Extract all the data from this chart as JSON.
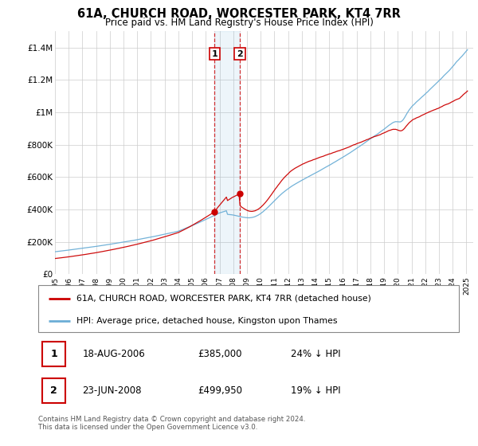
{
  "title": "61A, CHURCH ROAD, WORCESTER PARK, KT4 7RR",
  "subtitle": "Price paid vs. HM Land Registry's House Price Index (HPI)",
  "legend_line1": "61A, CHURCH ROAD, WORCESTER PARK, KT4 7RR (detached house)",
  "legend_line2": "HPI: Average price, detached house, Kingston upon Thames",
  "transaction1_date": "18-AUG-2006",
  "transaction1_price": "£385,000",
  "transaction1_hpi": "24% ↓ HPI",
  "transaction2_date": "23-JUN-2008",
  "transaction2_price": "£499,950",
  "transaction2_hpi": "19% ↓ HPI",
  "footer": "Contains HM Land Registry data © Crown copyright and database right 2024.\nThis data is licensed under the Open Government Licence v3.0.",
  "hpi_color": "#6baed6",
  "price_color": "#cc0000",
  "transaction1_x": 2006.63,
  "transaction2_x": 2008.48,
  "transaction1_y": 385000,
  "transaction2_y": 499950,
  "ylim_min": 0,
  "ylim_max": 1500000,
  "xlim_min": 1995,
  "xlim_max": 2025.5,
  "yticks": [
    0,
    200000,
    400000,
    600000,
    800000,
    1000000,
    1200000,
    1400000
  ],
  "ytick_labels": [
    "£0",
    "£200K",
    "£400K",
    "£600K",
    "£800K",
    "£1M",
    "£1.2M",
    "£1.4M"
  ],
  "xticks": [
    1995,
    1996,
    1997,
    1998,
    1999,
    2000,
    2001,
    2002,
    2003,
    2004,
    2005,
    2006,
    2007,
    2008,
    2009,
    2010,
    2011,
    2012,
    2013,
    2014,
    2015,
    2016,
    2017,
    2018,
    2019,
    2020,
    2021,
    2022,
    2023,
    2024,
    2025
  ]
}
